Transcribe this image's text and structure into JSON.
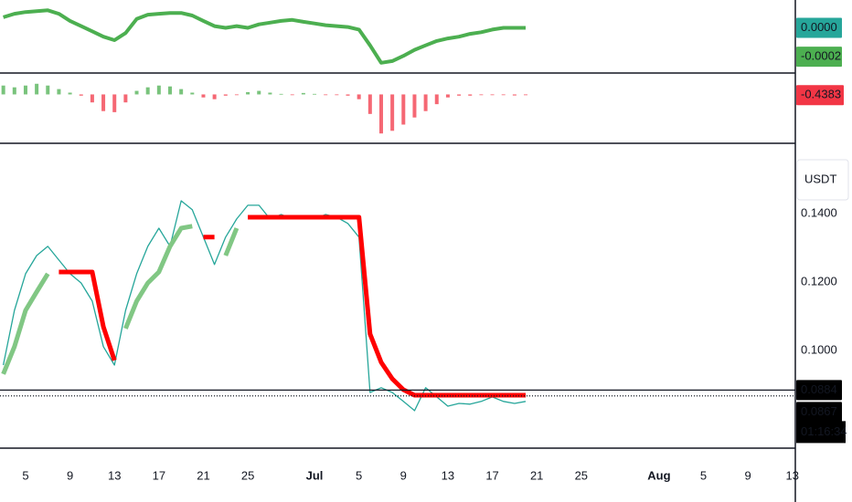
{
  "chart_data": {
    "type": "multi-pane",
    "x": [
      3,
      4,
      5,
      6,
      7,
      8,
      9,
      10,
      11,
      12,
      13,
      14,
      15,
      16,
      17,
      18,
      19,
      20,
      21,
      22,
      23,
      24,
      25,
      26,
      27,
      28,
      29,
      30,
      31,
      32,
      33,
      34,
      35,
      36,
      37,
      38,
      39,
      40,
      41,
      42,
      43,
      44,
      45,
      46,
      47,
      48,
      49,
      50
    ],
    "xlim": [
      2.7,
      74.1
    ],
    "xticks": [
      5,
      9,
      13,
      17,
      21,
      25,
      {
        "value": 31,
        "label": "Jul"
      },
      {
        "value": 35,
        "label": "5"
      },
      {
        "value": 39,
        "label": "9"
      },
      {
        "value": 43,
        "label": "13"
      },
      {
        "value": 47,
        "label": "17"
      },
      {
        "value": 51,
        "label": "21"
      },
      {
        "value": 55,
        "label": "25"
      },
      {
        "value": 62,
        "label": "Aug"
      },
      {
        "value": 66,
        "label": "5"
      },
      {
        "value": 70,
        "label": "9"
      },
      {
        "value": 74,
        "label": "13"
      }
    ],
    "panes": [
      {
        "type": "line",
        "ylim": [
          -0.0003,
          0.00018
        ],
        "series": [
          {
            "color": "#4caf50",
            "values": [
              7.3e-05,
              9.7e-05,
              0.000109,
              0.000115,
              0.000121,
              9.7e-05,
              4.8e-05,
              1.2e-05,
              -2.4e-05,
              -6.1e-05,
              -8.5e-05,
              -3.6e-05,
              6.1e-05,
              9.1e-05,
              9.7e-05,
              0.000103,
              0.000103,
              8.5e-05,
              4.8e-05,
              1.2e-05,
              0,
              1.2e-05,
              0,
              2.4e-05,
              3.6e-05,
              4.8e-05,
              5.5e-05,
              4.2e-05,
              3e-05,
              1.8e-05,
              1.2e-05,
              6e-06,
              -1.2e-05,
              -0.000121,
              -0.000242,
              -0.00023,
              -0.000194,
              -0.000152,
              -0.000121,
              -9.1e-05,
              -7.3e-05,
              -6.1e-05,
              -4.2e-05,
              -3e-05,
              -1.2e-05,
              0,
              0,
              0
            ]
          }
        ],
        "markers": [
          {
            "value": 0,
            "label": "0.0000",
            "color": "#26a69a"
          },
          {
            "value": -0.0002,
            "label": "-0.0002",
            "color": "#4caf50"
          }
        ]
      },
      {
        "type": "bar",
        "ylim": [
          -26,
          10
        ],
        "color_positive": "#4caf50",
        "color_negative": "#f23645",
        "last_value_marker": true,
        "values": [
          5,
          4,
          5,
          6,
          5,
          3,
          1,
          -0.7,
          -4.5,
          -9.4,
          -10,
          -4.5,
          2,
          4,
          5,
          4.5,
          3,
          1,
          -1.7,
          -2.7,
          -0.7,
          -0.2,
          1.3,
          2,
          1,
          0.3,
          -0.2,
          0.8,
          0.3,
          -0.2,
          -0.2,
          -0.7,
          -2.7,
          -11,
          -22,
          -20.5,
          -17,
          -13,
          -9.4,
          -5.5,
          -1.7,
          -0.7,
          -0.7,
          -0.2,
          -0.2,
          -0.2,
          -0.6,
          -0.4383
        ]
      },
      {
        "type": "line",
        "ylim": [
          0.0717,
          0.1597
        ],
        "currency": "USDT",
        "yticks": [
          {
            "value": 0.1,
            "label": "0.1000"
          },
          {
            "value": 0.12,
            "label": "0.1200"
          },
          {
            "value": 0.14,
            "label": "0.1400"
          }
        ],
        "series": [
          {
            "color": "#26a69a",
            "values": [
              0.0957,
              0.1117,
              0.1224,
              0.1277,
              0.1304,
              0.1264,
              0.1224,
              0.1197,
              0.1144,
              0.1011,
              0.0957,
              0.1117,
              0.1224,
              0.1304,
              0.1357,
              0.1304,
              0.1437,
              0.1411,
              0.1331,
              0.1251,
              0.1331,
              0.1384,
              0.1424,
              0.1424,
              0.1384,
              0.1397,
              0.1384,
              0.1389,
              0.1384,
              0.1397,
              0.1389,
              0.1371,
              0.1331,
              0.0877,
              0.0891,
              0.0877,
              0.0851,
              0.0824,
              0.0891,
              0.0864,
              0.0837,
              0.0845,
              0.0843,
              0.0851,
              0.0864,
              0.0851,
              0.0845,
              0.0851
            ]
          },
          {
            "color": "#81c784",
            "values": [
              0.0931,
              0.1011,
              0.1117,
              0.1171,
              0.1224,
              null,
              null,
              null,
              null,
              null,
              null,
              0.1064,
              0.1144,
              0.1197,
              0.1229,
              0.1304,
              0.1357,
              0.1363,
              null,
              null,
              0.1277,
              0.1357,
              null,
              null,
              null,
              null,
              null,
              null,
              null,
              null,
              null,
              null,
              null,
              null,
              null,
              null,
              null,
              null,
              null,
              null,
              null,
              null,
              null,
              null,
              null,
              null,
              null,
              null
            ]
          },
          {
            "color": "#ff0000",
            "values": [
              null,
              null,
              null,
              null,
              null,
              0.1229,
              0.1229,
              0.1229,
              0.1229,
              0.1069,
              0.0971,
              null,
              null,
              null,
              null,
              null,
              null,
              null,
              0.1331,
              0.1331,
              null,
              null,
              0.1389,
              0.1389,
              0.1389,
              0.1389,
              0.1389,
              0.1389,
              0.1389,
              0.1389,
              0.1389,
              0.1389,
              0.1389,
              0.1048,
              0.0965,
              0.0917,
              0.0885,
              0.0869,
              0.0869,
              0.0869,
              0.0869,
              0.0869,
              0.0869,
              0.0869,
              0.0869,
              0.0869,
              0.0869,
              0.0869
            ]
          }
        ],
        "markers": [
          {
            "value": 0.0884,
            "label": "0.0884",
            "color": "#000000"
          },
          {
            "value": 0.0867,
            "label": "0.0867",
            "color": "#000000"
          }
        ],
        "countdown": "01:16:34"
      }
    ]
  }
}
